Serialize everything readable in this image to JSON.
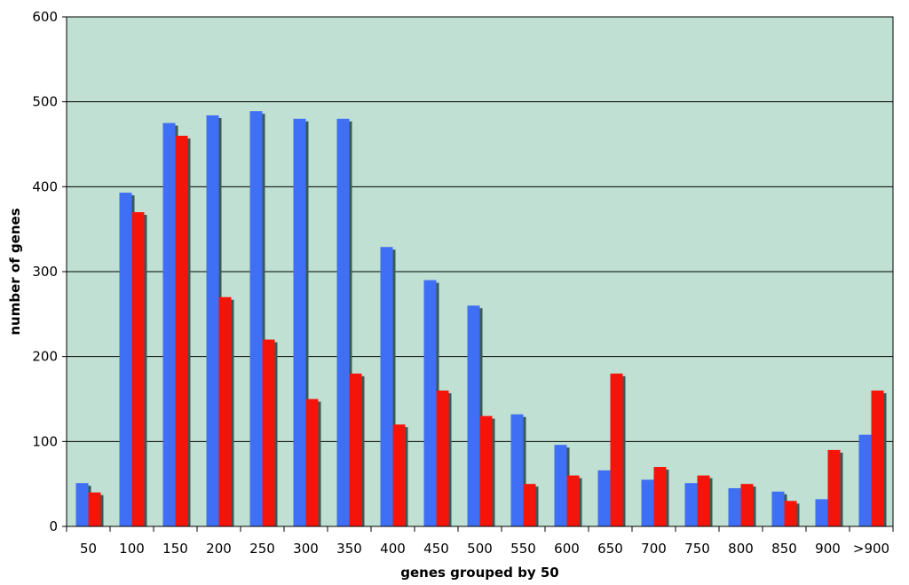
{
  "chart_data": {
    "type": "bar",
    "title": "",
    "xlabel": "genes grouped by 50",
    "ylabel": "number of genes",
    "ylim": [
      0,
      600
    ],
    "yticks": [
      0,
      100,
      200,
      300,
      400,
      500,
      600
    ],
    "grid": true,
    "legend": "none",
    "background_color": "#bfe0d3",
    "categories": [
      "50",
      "100",
      "150",
      "200",
      "250",
      "300",
      "350",
      "400",
      "450",
      "500",
      "550",
      "600",
      "650",
      "700",
      "750",
      "800",
      "850",
      "900",
      ">900"
    ],
    "series": [
      {
        "color": "#3f6ff5",
        "values": [
          51,
          393,
          475,
          484,
          489,
          480,
          480,
          329,
          290,
          260,
          132,
          96,
          66,
          55,
          51,
          45,
          41,
          32,
          108
        ]
      },
      {
        "color": "#f5140a",
        "values": [
          40,
          370,
          460,
          270,
          220,
          150,
          180,
          120,
          160,
          130,
          50,
          60,
          180,
          70,
          60,
          50,
          30,
          90,
          160
        ]
      }
    ]
  }
}
